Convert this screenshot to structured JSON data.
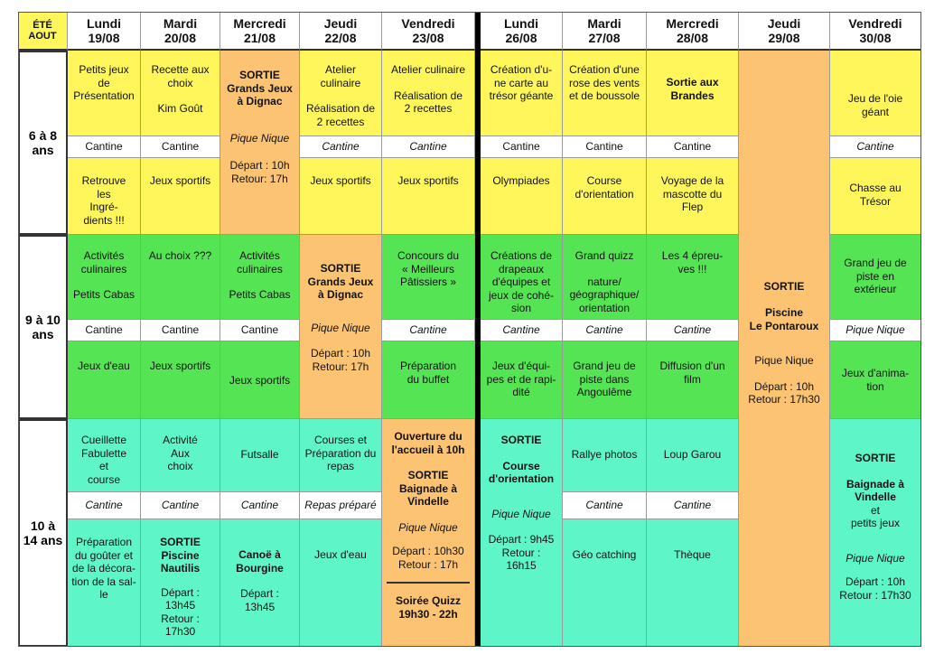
{
  "header": {
    "ete": "ÉTÉ",
    "aout": "AOUT",
    "days": [
      {
        "day": "Lundi",
        "date": "19/08"
      },
      {
        "day": "Mardi",
        "date": "20/08"
      },
      {
        "day": "Mercredi",
        "date": "21/08"
      },
      {
        "day": "Jeudi",
        "date": "22/08"
      },
      {
        "day": "Vendredi",
        "date": "23/08"
      },
      {
        "day": "Lundi",
        "date": "26/08"
      },
      {
        "day": "Mardi",
        "date": "27/08"
      },
      {
        "day": "Mercredi",
        "date": "28/08"
      },
      {
        "day": "Jeudi",
        "date": "29/08"
      },
      {
        "day": "Vendredi",
        "date": "30/08"
      }
    ]
  },
  "ages": {
    "g1": {
      "line1": "6 à 8",
      "line2": "ans"
    },
    "g2": {
      "line1": "9 à 10",
      "line2": "ans"
    },
    "g3": {
      "line1": "10 à",
      "line2": "14 ans"
    }
  },
  "colors": {
    "yellow": "#fef65b",
    "green": "#55e454",
    "teal": "#5ef6c8",
    "orange": "#fcc472"
  },
  "cells": {
    "y_mo_lun1": "Petits jeux\nde\nPrésentation",
    "y_mo_mar1": "Recette aux\nchoix",
    "y_mo_mar1b": "Kim Goût",
    "y_sortie_mer1_title": "SORTIE\nGrands Jeux\nà Dignac",
    "y_sortie_mer1_pique": "Pique Nique",
    "y_sortie_mer1_dep": "Départ : 10h\nRetour: 17h",
    "y_mo_jeu1": "Atelier\nculinaire",
    "y_mo_jeu1b": "Réalisation de\n2 recettes",
    "y_mo_ven1": "Atelier culinaire",
    "y_mo_ven1b": "Réalisation de\n2 recettes",
    "y_mo_lun2": "Création d'u-\nne carte au\ntrésor géante",
    "y_mo_mar2": "Création d'une\nrose des vents\net de boussole",
    "y_mo_mer2": "Sortie aux\nBrandes",
    "y_mo_ven2": "Jeu de l'oie\ngéant",
    "cantine": "Cantine",
    "y_af_lun1": "Retrouve\nles\nIngré-\ndients !!!",
    "y_af_mar1": "Jeux sportifs",
    "y_af_jeu1": "Jeux sportifs",
    "y_af_ven1": "Jeux sportifs",
    "y_af_lun2": "Olympiades",
    "y_af_mar2": "Course\nd'orientation",
    "y_af_mer2": "Voyage de la\nmascotte du\nFlep",
    "y_af_ven2": "Chasse au\nTrésor",
    "g_mo_lun1": "Activités\nculinaires",
    "g_mo_lun1b": "Petits Cabas",
    "g_mo_mar1": "Au choix ???",
    "g_mo_mer1": "Activités\nculinaires",
    "g_mo_mer1b": "Petits Cabas",
    "g_sortie_jeu1_title": "SORTIE\nGrands Jeux\nà Dignac",
    "g_sortie_jeu1_pique": "Pique Nique",
    "g_sortie_jeu1_dep": "Départ : 10h\nRetour: 17h",
    "g_mo_ven1": "Concours du\n« Meilleurs\nPâtissiers »",
    "g_mo_lun2": "Créations de\ndrapeaux\nd'équipes et\njeux de cohé-\nsion",
    "g_mo_mar2": "Grand quizz",
    "g_mo_mar2b": "nature/\ngéographique/\norientation",
    "g_mo_mer2": "Les 4 épreu-\nves !!!",
    "g_mo_ven2": "Grand jeu de\npiste en\nextérieur",
    "g_af_lun1": "Jeux d'eau",
    "g_af_mar1": "Jeux sportifs",
    "g_af_mer1": "Jeux sportifs",
    "g_af_ven1": "Préparation\ndu buffet",
    "g_af_lun2": "Jeux d'équi-\npes et de rapi-\ndité",
    "g_af_mar2": "Grand jeu de\npiste dans\nAngoulême",
    "g_af_mer2": "Diffusion d'un\nfilm",
    "g_af_ven2": "Jeux d'anima-\ntion",
    "pique_nique": "Pique Nique",
    "piscine_title": "SORTIE\n\nPiscine\nLe Pontaroux",
    "piscine_pique": "Pique Nique",
    "piscine_dep": "Départ : 10h\nRetour : 17h30",
    "t_mo_lun1": "Cueillette\nFabulette\net\ncourse",
    "t_mo_mar1": "Activité\nAux\nchoix",
    "t_mo_mer1": "Futsalle",
    "t_mo_jeu1": "Courses et\nPréparation du\nrepas",
    "t_ven1_title": "Ouverture du\nl'accueil à 10h",
    "t_ven1_sortie": "SORTIE\nBaignade à\nVindelle",
    "t_ven1_pique": "Pique Nique",
    "t_ven1_dep": "Départ : 10h30\nRetour : 17h",
    "t_ven1_quizz": "Soirée Quizz\n19h30 -  22h",
    "t_lun2_sortie": "SORTIE",
    "t_lun2_course": "Course\nd'orientation",
    "t_lun2_pique": "Pique Nique",
    "t_lun2_dep": "Départ : 9h45\nRetour :\n16h15",
    "t_mo_mar2": "Rallye photos",
    "t_mo_mer2": "Loup Garou",
    "t_ven2_sortie": "SORTIE",
    "t_ven2_baignade": "Baignade à\nVindelle",
    "t_ven2_et": "et\npetits jeux",
    "t_ven2_pique": "Pique Nique",
    "t_ven2_dep": "Départ : 10h\nRetour : 17h30",
    "repas_prepare": "Repas préparé",
    "t_af_lun1": "Préparation\ndu goûter et\nde la décora-\ntion de la sal-\nle",
    "t_af_mar1": "SORTIE\nPiscine\nNautilis",
    "t_af_mar1_dep": "Départ :\n13h45\nRetour :\n17h30",
    "t_af_mer1": "Canoë à\nBourgine",
    "t_af_mer1_dep": "Départ :\n13h45",
    "t_af_jeu1": "Jeux d'eau",
    "t_af_mar2": "Géo catching",
    "t_af_mer2": "Thèque"
  }
}
